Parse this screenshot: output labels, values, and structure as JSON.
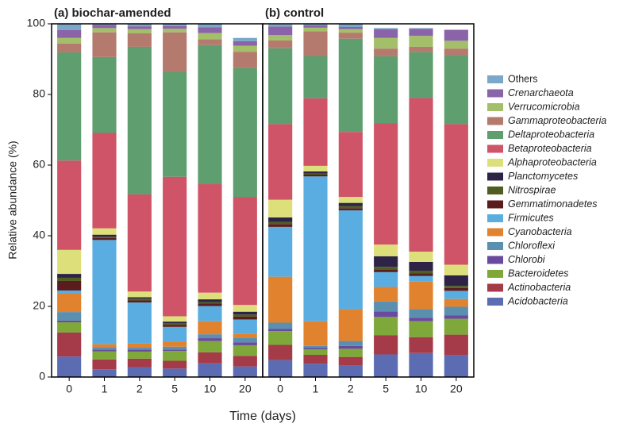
{
  "chart_data": [
    {
      "type": "bar",
      "stacked": true,
      "title": "(a) biochar-amended",
      "ylabel": "Relative abundance (%)",
      "xlabel": "Time (days)",
      "categories": [
        "0",
        "1",
        "2",
        "5",
        "10",
        "20"
      ],
      "ylim": [
        0,
        100
      ],
      "yticks": [
        0,
        20,
        40,
        60,
        80,
        100
      ],
      "series": [
        {
          "name": "Acidobacteria",
          "color": "#5b6cb3",
          "values": [
            5.8,
            2.2,
            2.8,
            2.4,
            3.9,
            3.0
          ]
        },
        {
          "name": "Actinobacteria",
          "color": "#a53a48",
          "values": [
            6.8,
            2.8,
            2.4,
            2.2,
            3.1,
            3.0
          ]
        },
        {
          "name": "Bacteroidetes",
          "color": "#7ea83a",
          "values": [
            2.9,
            2.3,
            2.0,
            2.8,
            3.2,
            3.0
          ]
        },
        {
          "name": "Chlorobi",
          "color": "#6a4a9e",
          "values": [
            0.5,
            0.5,
            0.6,
            0.4,
            0.8,
            0.8
          ]
        },
        {
          "name": "Chloroflexi",
          "color": "#5a8fb0",
          "values": [
            2.4,
            0.7,
            0.5,
            0.8,
            1.1,
            1.3
          ]
        },
        {
          "name": "Cyanobacteria",
          "color": "#e0822e",
          "values": [
            5.2,
            0.8,
            1.3,
            1.3,
            3.7,
            1.2
          ]
        },
        {
          "name": "Firmicutes",
          "color": "#5aade0",
          "values": [
            0.9,
            29.5,
            11.5,
            4.3,
            4.3,
            4.0
          ]
        },
        {
          "name": "Gemmatimonadetes",
          "color": "#5a1c1c",
          "values": [
            2.7,
            0.6,
            0.6,
            0.6,
            0.7,
            0.8
          ]
        },
        {
          "name": "Nitrospirae",
          "color": "#4d5e20",
          "values": [
            0.9,
            0.3,
            0.5,
            0.4,
            0.4,
            0.6
          ]
        },
        {
          "name": "Planctomycetes",
          "color": "#2e2347",
          "values": [
            1.1,
            0.6,
            0.4,
            0.5,
            0.8,
            0.8
          ]
        },
        {
          "name": "Alphaproteobacteria",
          "color": "#dde07a",
          "values": [
            6.8,
            1.8,
            1.6,
            1.5,
            1.9,
            1.9
          ]
        },
        {
          "name": "Betaproteobacteria",
          "color": "#d05468",
          "values": [
            25.3,
            27.0,
            27.5,
            39.5,
            30.7,
            30.6
          ]
        },
        {
          "name": "Deltaproteobacteria",
          "color": "#5f9e6e",
          "values": [
            30.6,
            21.5,
            41.8,
            29.7,
            39.4,
            36.5
          ]
        },
        {
          "name": "Gammaproteobacteria",
          "color": "#b57a6e",
          "values": [
            2.5,
            7.0,
            3.8,
            11.2,
            1.6,
            4.6
          ]
        },
        {
          "name": "Verrucomicrobia",
          "color": "#a3bf6a",
          "values": [
            1.6,
            1.2,
            1.2,
            1.0,
            1.8,
            1.7
          ]
        },
        {
          "name": "Crenarchaeota",
          "color": "#8b63a8",
          "values": [
            2.2,
            0.9,
            0.8,
            0.8,
            1.6,
            1.3
          ]
        },
        {
          "name": "Others",
          "color": "#7ba7c8",
          "values": [
            1.8,
            0.3,
            0.7,
            0.6,
            1.0,
            0.9
          ]
        }
      ]
    },
    {
      "type": "bar",
      "stacked": true,
      "title": "(b) control",
      "categories": [
        "0",
        "1",
        "2",
        "5",
        "10",
        "20"
      ],
      "ylim": [
        0,
        100
      ],
      "series": [
        {
          "color": "#5b6cb3",
          "values": [
            4.8,
            3.8,
            3.2,
            6.4,
            6.8,
            6.2
          ]
        },
        {
          "color": "#a53a48",
          "values": [
            4.3,
            2.5,
            2.5,
            5.4,
            4.5,
            5.8
          ]
        },
        {
          "color": "#7ea83a",
          "values": [
            3.9,
            1.5,
            2.3,
            5.2,
            4.5,
            4.5
          ]
        },
        {
          "color": "#6a4a9e",
          "values": [
            0.6,
            0.4,
            0.8,
            1.6,
            1.0,
            1.0
          ]
        },
        {
          "color": "#5a8fb0",
          "values": [
            1.8,
            0.6,
            1.4,
            2.8,
            2.4,
            2.4
          ]
        },
        {
          "color": "#e0822e",
          "values": [
            13.0,
            7.0,
            9.0,
            4.1,
            7.8,
            2.2
          ]
        },
        {
          "color": "#5aade0",
          "values": [
            14.1,
            41.0,
            28.0,
            4.2,
            1.6,
            2.3
          ]
        },
        {
          "color": "#5a1c1c",
          "values": [
            0.8,
            0.5,
            0.6,
            0.8,
            0.8,
            0.8
          ]
        },
        {
          "color": "#4d5e20",
          "values": [
            0.6,
            0.3,
            0.6,
            0.7,
            0.7,
            0.6
          ]
        },
        {
          "color": "#2e2347",
          "values": [
            1.3,
            0.6,
            0.9,
            3.0,
            2.5,
            3.0
          ]
        },
        {
          "color": "#dde07a",
          "values": [
            5.0,
            1.6,
            1.7,
            3.3,
            2.9,
            3.0
          ]
        },
        {
          "color": "#d05468",
          "values": [
            21.4,
            19.1,
            18.4,
            34.4,
            43.5,
            39.8
          ]
        },
        {
          "color": "#5f9e6e",
          "values": [
            21.5,
            12.0,
            26.4,
            18.9,
            13.0,
            19.4
          ]
        },
        {
          "color": "#b57a6e",
          "values": [
            2.2,
            7.0,
            1.7,
            2.2,
            1.5,
            2.0
          ]
        },
        {
          "color": "#a3bf6a",
          "values": [
            1.5,
            1.0,
            1.0,
            3.0,
            3.1,
            2.2
          ]
        },
        {
          "color": "#8b63a8",
          "values": [
            2.4,
            0.7,
            0.6,
            2.5,
            2.0,
            3.1
          ]
        },
        {
          "color": "#7ba7c8",
          "values": [
            0.6,
            0.4,
            0.9,
            0.3,
            0.2,
            0.0
          ]
        }
      ]
    }
  ]
}
